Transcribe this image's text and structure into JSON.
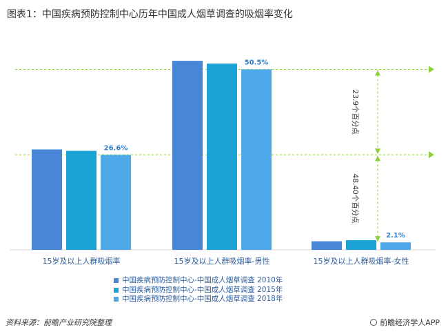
{
  "header": {
    "title": "图表1：中国疾病预防控制中心历年中国成人烟草调查的吸烟率变化"
  },
  "chart_data": {
    "type": "bar",
    "categories": [
      "15岁及以上人群吸烟率",
      "15岁及以上人群吸烟率-男性",
      "15岁及以上人群吸烟率-女性"
    ],
    "series": [
      {
        "name": "中国疾病预防控制中心-中国成人烟草调查 2010年",
        "color": "#4a86d8",
        "values": [
          28.1,
          52.9,
          2.4
        ]
      },
      {
        "name": "中国疾病预防控制中心-中国成人烟草调查 2015年",
        "color": "#1aa3d4",
        "values": [
          27.7,
          52.1,
          2.7
        ]
      },
      {
        "name": "中国疾病预防控制中心-中国成人烟草调查 2018年",
        "color": "#4ea9e8",
        "values": [
          26.6,
          50.5,
          2.1
        ]
      }
    ],
    "data_labels": [
      "26.6%",
      "50.5%",
      "2.1%"
    ],
    "annotations": [
      "23.9个百分点",
      "48.40个百分点"
    ],
    "ylim": [
      0,
      56
    ],
    "grid": false,
    "legend_position": "bottom"
  },
  "footer": {
    "source": "资料来源：前瞻产业研究院整理",
    "brand": "前瞻经济学人APP"
  }
}
